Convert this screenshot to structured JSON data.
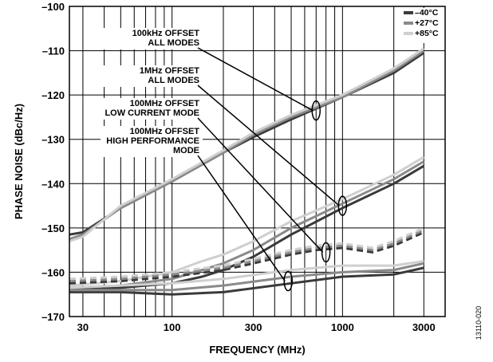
{
  "chart_data": {
    "type": "line",
    "xlabel": "FREQUENCY (MHz)",
    "ylabel": "PHASE NOISE (dBc/Hz)",
    "x_scale": "log",
    "xlim": [
      25,
      4000
    ],
    "ylim": [
      -170,
      -100
    ],
    "x_ticks": [
      {
        "value": 30,
        "label": "30"
      },
      {
        "value": 100,
        "label": "100"
      },
      {
        "value": 300,
        "label": "300"
      },
      {
        "value": 1000,
        "label": "1000"
      },
      {
        "value": 3000,
        "label": "3000"
      }
    ],
    "y_ticks": [
      {
        "value": -100,
        "label": "–100"
      },
      {
        "value": -110,
        "label": "–110"
      },
      {
        "value": -120,
        "label": "–120"
      },
      {
        "value": -130,
        "label": "–130"
      },
      {
        "value": -140,
        "label": "–140"
      },
      {
        "value": -150,
        "label": "–150"
      },
      {
        "value": -160,
        "label": "–160"
      },
      {
        "value": -170,
        "label": "–170"
      }
    ],
    "grid": "on",
    "legend_position": "top-right",
    "legend": [
      {
        "label": "–40°C",
        "color": "#3a3a3a"
      },
      {
        "label": "+27°C",
        "color": "#8a8a8a"
      },
      {
        "label": "+85°C",
        "color": "#cfcfcf"
      }
    ],
    "annotations": [
      {
        "lines": [
          "100kHz OFFSET",
          "ALL MODES"
        ],
        "target": [
          700,
          -123.5
        ]
      },
      {
        "lines": [
          "1MHz OFFSET",
          "ALL MODES"
        ],
        "target": [
          1000,
          -145
        ]
      },
      {
        "lines": [
          "100MHz OFFSET",
          "LOW CURRENT MODE"
        ],
        "target": [
          800,
          -155.5
        ]
      },
      {
        "lines": [
          "100MHz OFFSET",
          "HIGH PERFORMANCE",
          "MODE"
        ],
        "target": [
          480,
          -162
        ]
      }
    ],
    "series": [
      {
        "group": "100kHz OFFSET ALL MODES",
        "temp": "–40°C",
        "style": "solid",
        "x": [
          25,
          30,
          50,
          100,
          200,
          300,
          500,
          1000,
          2000,
          3000
        ],
        "y": [
          -151.5,
          -151,
          -145.5,
          -139.5,
          -133,
          -129.5,
          -125.5,
          -120.5,
          -115,
          -110.5
        ]
      },
      {
        "group": "100kHz OFFSET ALL MODES",
        "temp": "+27°C",
        "style": "solid",
        "x": [
          25,
          30,
          50,
          100,
          200,
          300,
          500,
          1000,
          2000,
          3000
        ],
        "y": [
          -152.5,
          -151.5,
          -145.5,
          -139.5,
          -133,
          -129,
          -125,
          -120.5,
          -114.5,
          -110
        ]
      },
      {
        "group": "100kHz OFFSET ALL MODES",
        "temp": "+85°C",
        "style": "solid",
        "x": [
          25,
          30,
          50,
          100,
          200,
          300,
          500,
          1000,
          2000,
          3000
        ],
        "y": [
          -153,
          -152,
          -145,
          -139,
          -132.5,
          -128.5,
          -124.5,
          -120,
          -114,
          -109.5
        ]
      },
      {
        "group": "1MHz OFFSET ALL MODES",
        "temp": "–40°C",
        "style": "solid",
        "x": [
          25,
          50,
          100,
          150,
          200,
          300,
          500,
          1000,
          2000,
          3000
        ],
        "y": [
          -164,
          -163.5,
          -162.5,
          -161,
          -159.5,
          -156.5,
          -151.5,
          -145.5,
          -140,
          -136
        ]
      },
      {
        "group": "1MHz OFFSET ALL MODES",
        "temp": "+27°C",
        "style": "solid",
        "x": [
          25,
          50,
          100,
          150,
          200,
          300,
          500,
          1000,
          2000,
          3000
        ],
        "y": [
          -163.5,
          -163,
          -161.5,
          -159.5,
          -158,
          -155,
          -150,
          -144.5,
          -139,
          -135
        ]
      },
      {
        "group": "1MHz OFFSET ALL MODES",
        "temp": "+85°C",
        "style": "solid",
        "x": [
          25,
          50,
          100,
          150,
          200,
          300,
          500,
          1000,
          2000,
          3000
        ],
        "y": [
          -163,
          -162,
          -160,
          -157.5,
          -156,
          -153,
          -148.5,
          -143.5,
          -138,
          -134
        ]
      },
      {
        "group": "100MHz OFFSET LOW CURRENT MODE",
        "temp": "–40°C",
        "style": "dashed",
        "x": [
          25,
          50,
          100,
          200,
          300,
          500,
          700,
          1000,
          1500,
          2000,
          3000
        ],
        "y": [
          -162.5,
          -162,
          -161,
          -159.5,
          -158,
          -156,
          -155,
          -154.5,
          -155.5,
          -154,
          -151
        ]
      },
      {
        "group": "100MHz OFFSET LOW CURRENT MODE",
        "temp": "+27°C",
        "style": "dashed",
        "x": [
          25,
          50,
          100,
          200,
          300,
          500,
          700,
          1000,
          1500,
          2000,
          3000
        ],
        "y": [
          -162,
          -161.5,
          -160.5,
          -159,
          -157.5,
          -155.5,
          -154.5,
          -154,
          -155,
          -153.5,
          -150.5
        ]
      },
      {
        "group": "100MHz OFFSET LOW CURRENT MODE",
        "temp": "+85°C",
        "style": "dashed",
        "x": [
          25,
          50,
          100,
          200,
          300,
          500,
          700,
          1000,
          1500,
          2000,
          3000
        ],
        "y": [
          -161.5,
          -161,
          -160,
          -158.5,
          -157,
          -155,
          -154,
          -153.5,
          -154.5,
          -153,
          -150
        ]
      },
      {
        "group": "100MHz OFFSET HIGH PERFORMANCE MODE",
        "temp": "–40°C",
        "style": "solid",
        "x": [
          25,
          50,
          100,
          200,
          500,
          1000,
          2000,
          3000
        ],
        "y": [
          -164.5,
          -164.5,
          -165,
          -164.5,
          -162.5,
          -161,
          -160.5,
          -159
        ]
      },
      {
        "group": "100MHz OFFSET HIGH PERFORMANCE MODE",
        "temp": "+27°C",
        "style": "solid",
        "x": [
          25,
          50,
          100,
          200,
          500,
          1000,
          2000,
          3000
        ],
        "y": [
          -164,
          -164,
          -164,
          -163,
          -161,
          -160,
          -159.5,
          -158
        ]
      },
      {
        "group": "100MHz OFFSET HIGH PERFORMANCE MODE",
        "temp": "+85°C",
        "style": "solid",
        "x": [
          25,
          50,
          100,
          200,
          500,
          1000,
          2000,
          3000
        ],
        "y": [
          -163.5,
          -163,
          -162.5,
          -161.5,
          -159.5,
          -158.5,
          -158.5,
          -157.5
        ]
      }
    ]
  },
  "figure_code": "13110-020"
}
